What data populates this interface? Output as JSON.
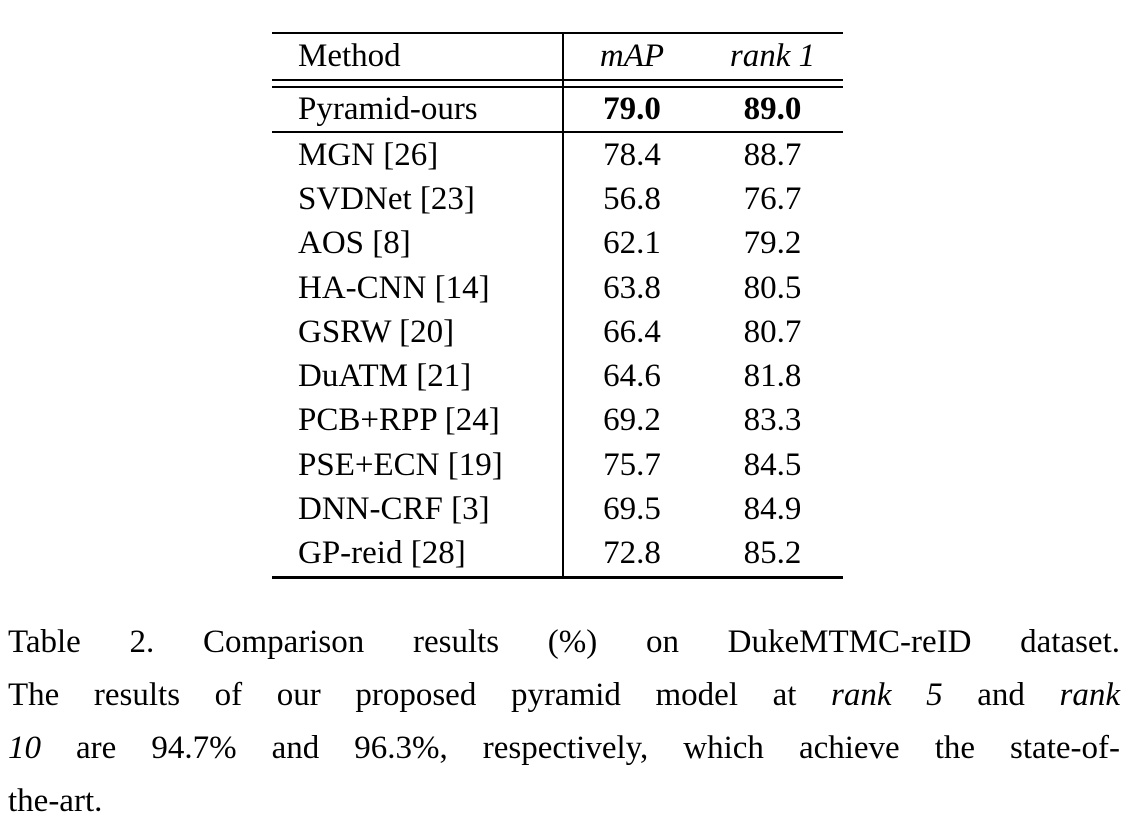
{
  "colors": {
    "background": "#ffffff",
    "text": "#000000",
    "rule": "#000000"
  },
  "table": {
    "headers": {
      "method": "Method",
      "map": "mAP",
      "rank1": "rank 1"
    },
    "highlight": {
      "method": "Pyramid-ours",
      "map": "79.0",
      "rank1": "89.0"
    },
    "rows": [
      {
        "method": "MGN [26]",
        "map": "78.4",
        "rank1": "88.7"
      },
      {
        "method": "SVDNet [23]",
        "map": "56.8",
        "rank1": "76.7"
      },
      {
        "method": "AOS [8]",
        "map": "62.1",
        "rank1": "79.2"
      },
      {
        "method": "HA-CNN [14]",
        "map": "63.8",
        "rank1": "80.5"
      },
      {
        "method": "GSRW [20]",
        "map": "66.4",
        "rank1": "80.7"
      },
      {
        "method": "DuATM [21]",
        "map": "64.6",
        "rank1": "81.8"
      },
      {
        "method": "PCB+RPP [24]",
        "map": "69.2",
        "rank1": "83.3"
      },
      {
        "method": "PSE+ECN [19]",
        "map": "75.7",
        "rank1": "84.5"
      },
      {
        "method": "DNN-CRF [3]",
        "map": "69.5",
        "rank1": "84.9"
      },
      {
        "method": "GP-reid [28]",
        "map": "72.8",
        "rank1": "85.2"
      }
    ]
  },
  "caption": {
    "lines": [
      {
        "segments": [
          {
            "text": "Table 2. Comparison results (%) on DukeMTMC-reID dataset.",
            "italic": false
          }
        ]
      },
      {
        "segments": [
          {
            "text": "The results of our proposed pyramid model at",
            "italic": false
          },
          {
            "text": "rank 5",
            "italic": true
          },
          {
            "text": "and",
            "italic": false
          },
          {
            "text": "rank",
            "italic": true
          }
        ]
      },
      {
        "segments": [
          {
            "text": "10",
            "italic": true
          },
          {
            "text": "are 94.7% and 96.3%, respectively, which achieve the state-of-",
            "italic": false
          }
        ]
      },
      {
        "segments": [
          {
            "text": "the-art.",
            "italic": false
          }
        ]
      }
    ]
  }
}
